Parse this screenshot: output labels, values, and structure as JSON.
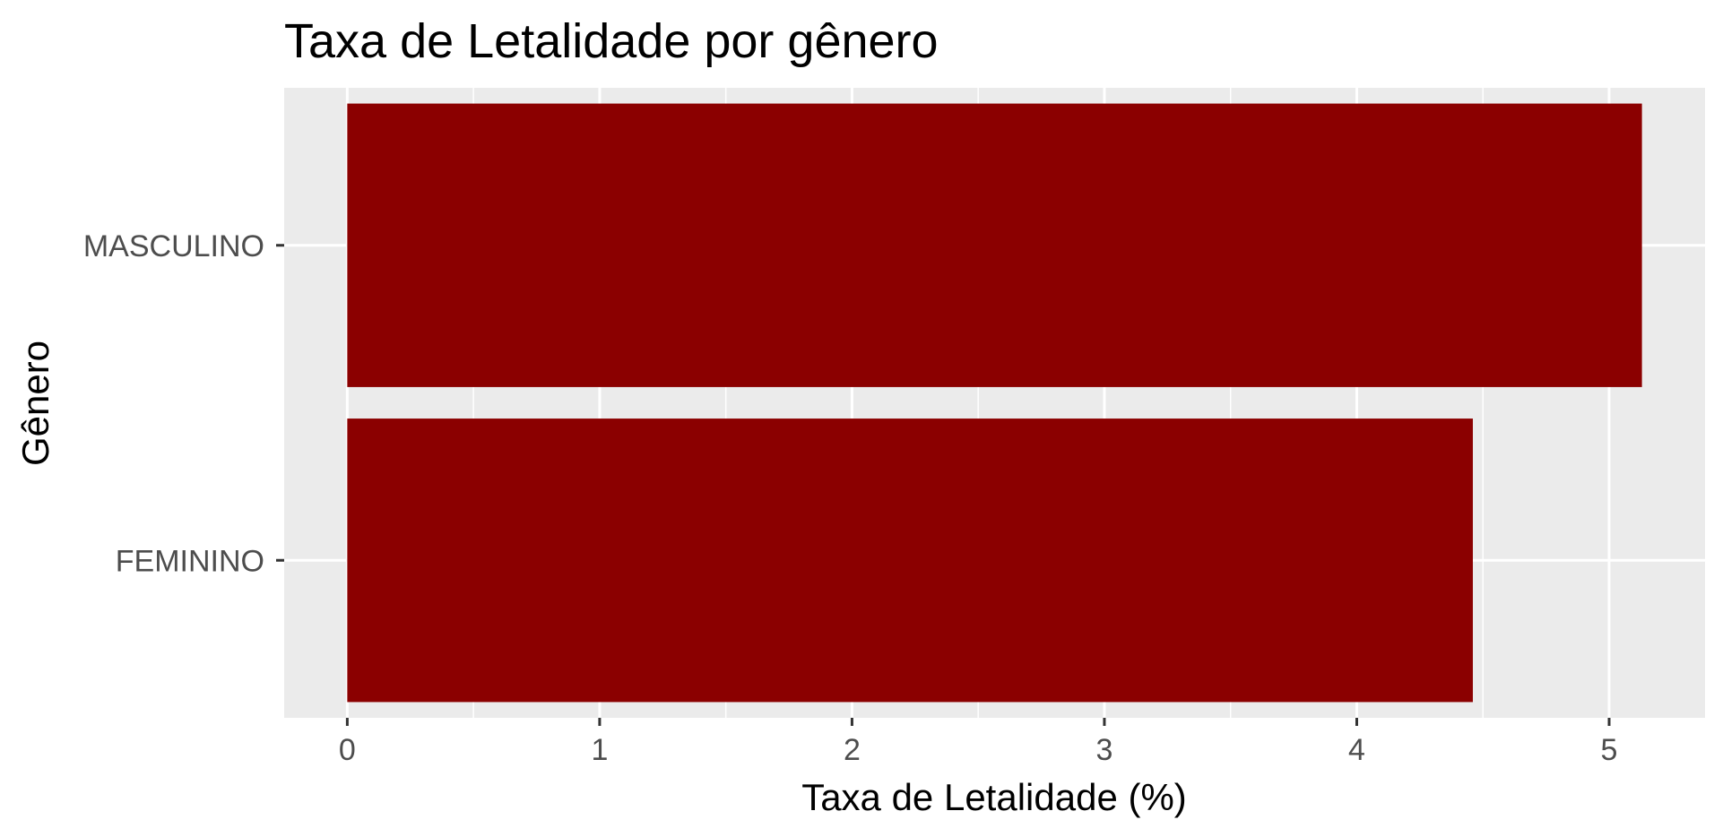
{
  "chart_data": {
    "type": "bar",
    "orientation": "horizontal",
    "title": "Taxa de Letalidade por gênero",
    "xlabel": "Taxa de Letalidade (%)",
    "ylabel": "Gênero",
    "categories": [
      "FEMININO",
      "MASCULINO"
    ],
    "values": [
      4.46,
      5.13
    ],
    "xlim": [
      -0.25,
      5.38
    ],
    "xticks": [
      0,
      1,
      2,
      3,
      4,
      5
    ],
    "grid": true,
    "legend": "none",
    "bar_color": "#8b0000",
    "panel_color": "#ebebeb"
  }
}
